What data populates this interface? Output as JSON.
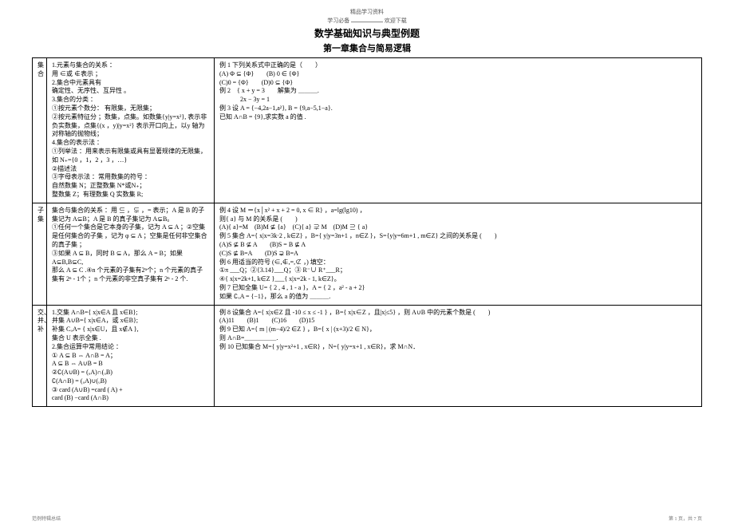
{
  "topline": "精品学习资料",
  "topnote_prefix": "学习必备",
  "topnote_suffix": "欢迎下载",
  "title": "数学基础知识与典型例题",
  "subtitle": "第一章集合与简易逻辑",
  "rows": [
    {
      "head": "集合",
      "left": "1.元素与集合的关系 ：\n用 ∈或 ∉表示 ；\n2.集合中元素具有\n确定性、无序性、互异性 。\n3.集合的分类 ：\n①按元素个数分： 有限集，无限集；\n②按元素特征分 ；数集，点集。如数集{y|y=x²}, 表示非负实数集，点集{(x ，y)|y=x²} 表示开口向上，以y 轴为对称轴的抛物线；\n4.集合的表示法 ：\n①列举法 ：用来表示有限集或具有显著规律的无限集， 如 N₊={0 ，1，2 ，3 ，…}\n②描述法\n③字母表示法 ：常用数集的符号 ：\n自然数集  N；正整数集  N*或N₊；\n整数集  Z；有理数集  Q  实数集  R;",
      "right": "例 1  下列关系式中正确的是（　　）\n(A) Φ ⊆ {Φ}　　(B) 0 ∈ {Φ}\n(C)0 = {Φ}　　(D)0 ⊆ {Φ}\n例 2　{ x + y = 3　　解集为 ＿＿＿.\n　　　 2x − 3y = 1\n例 3 设 A = {−4,2a−1,a²}, B = {9,a−5,1−a}.\n已知 A∩B = {9},求实数 a 的值 ."
    },
    {
      "head": "子集",
      "left": "集合与集合的关系 ：用 ⊆ ，⊊ ，= 表示；A 是 B 的子集记为 A⊆B；A 是 B 的真子集记为 A⊊B。\n①任何一个集合是它本身的子集，记为 A ⊆ A ；②空集是任何集合的子集 ，记为 φ ⊆ A ；空集是任何非空集合的真子集 ；\n③如果 A ⊆ B，同时 B ⊆ A，那么 A = B；如果 A⊆B,B⊆C,\n那么 A ⊆ C  .④n  个元素的子集有2ⁿ个；n  个元素的真子集有   2ⁿ - 1个 ；n  个元素的非空真子集有    2ⁿ - 2 个.",
      "right": "例 4 设 M ＝{x│x² + x + 2 = 0, x ∈ R} ，a=lg(lg10) ，\n则{ a} 与 M 的关系是 (　　)\n(A){ a}=M　(B)M ⊈ {a}　(C){ a} ⊋ M　(D)M ⊇ { a}\n例 5 集合 A={ x|x=3k·2 , k∈Z} ，B={ y|y=3n+1 ，n∈Z }，S={y|y=6m+1 , m∈Z} 之间的关系是 (　　)\n(A)S ⊈ B ⊈ A　　(B)S = B ⊈ A\n(C)S ⊈ B=A　　(D)S ⊋ B=A\n例 6 用适当的符号  (∈,∉,=,⊄ ，)  填空：\n①π ___Q；②{3.14}___Q；③ R⁻∪ R⁺___R；\n④{ x|x=2k+1, k∈Z }___{ x|x=2k - 1, k∈Z}。\n例 7 已知全集  U= { 2 , 4 , 1 - a }，A = { 2 ，a² - a + 2}\n如果 ∁ᵤA = {−1}，那么 a 的值为 ＿＿＿."
    },
    {
      "head": "交、并、补",
      "left": "1.交集 A∩B={ x|x∈A 且 x∈B};\n并集 A∪B={ x|x∈A，或 x∈B};\n补集 CᵤA= { x|x∈U，且 x∉A },\n集合 U 表示全集 .\n2.集合运算中常用结论 ：\n① A ⊆ B ⇔ A∩B = A；\nA ⊆ B ⇔ A∪B = B\n②∁(A∪B) = (ᵤA)∩(ᵤB)\n∁(A∩B) = (ᵤA)∪(ᵤB)\n③ card  (A∪B) =card ( A) +\ncard (B) −card (A∩B)",
      "right": "例 8 设集合 A={ x|x∈Z 且 -10 ≤ x ≤ -1 } ，B={ x|x∈Z ，且|x|≤5} ，则 A∪B 中的元素个数是 (　　)\n(A)11　　(B)1　　(C)16　　(D)15\n例 9 已知 A={ m | (m−4)/2 ∈Z } ，B={ x | (x+3)/2 ∈ N}，\n则 A∩B=＿＿＿＿＿.\n例 10 已知集合 M={ y|y=x²+1 , x∈R} ，N={ y|y=x+1 , x∈R}，求 M∩N．"
    }
  ],
  "footer_left": "范例特辑总结",
  "footer_right": "第 1 页，共 7 页"
}
